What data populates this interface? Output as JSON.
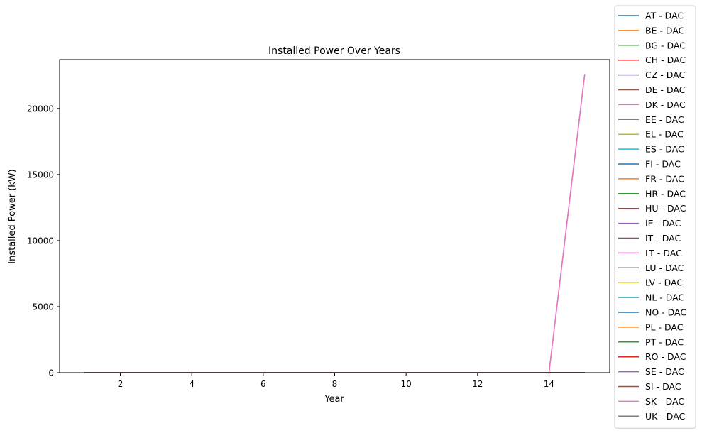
{
  "chart_data": {
    "type": "line",
    "title": "Installed Power Over Years",
    "xlabel": "Year",
    "ylabel": "Installed Power (kW)",
    "xlim": [
      0.3,
      15.7
    ],
    "ylim": [
      0,
      23700
    ],
    "xticks": [
      2,
      4,
      6,
      8,
      10,
      12,
      14
    ],
    "yticks": [
      0,
      5000,
      10000,
      15000,
      20000
    ],
    "grid": false,
    "legend_position": "right, outside plot",
    "x": [
      1,
      2,
      3,
      4,
      5,
      6,
      7,
      8,
      9,
      10,
      11,
      12,
      13,
      14,
      15
    ],
    "series": [
      {
        "name": "AT - DAC",
        "color": "#1f77b4",
        "values": [
          0,
          0,
          0,
          0,
          0,
          0,
          0,
          0,
          0,
          0,
          0,
          0,
          0,
          0,
          0
        ]
      },
      {
        "name": "BE - DAC",
        "color": "#ff7f0e",
        "values": [
          0,
          0,
          0,
          0,
          0,
          0,
          0,
          0,
          0,
          0,
          0,
          0,
          0,
          0,
          0
        ]
      },
      {
        "name": "BG - DAC",
        "color": "#2ca02c",
        "values": [
          0,
          0,
          0,
          0,
          0,
          0,
          0,
          0,
          0,
          0,
          0,
          0,
          0,
          0,
          0
        ]
      },
      {
        "name": "CH - DAC",
        "color": "#d62728",
        "values": [
          0,
          0,
          0,
          0,
          0,
          0,
          0,
          0,
          0,
          0,
          0,
          0,
          0,
          0,
          0
        ]
      },
      {
        "name": "CZ - DAC",
        "color": "#9467bd",
        "values": [
          0,
          0,
          0,
          0,
          0,
          0,
          0,
          0,
          0,
          0,
          0,
          0,
          0,
          0,
          0
        ]
      },
      {
        "name": "DE - DAC",
        "color": "#8c564b",
        "values": [
          0,
          0,
          0,
          0,
          0,
          0,
          0,
          0,
          0,
          0,
          0,
          0,
          0,
          0,
          0
        ]
      },
      {
        "name": "DK - DAC",
        "color": "#e377c2",
        "values": [
          0,
          0,
          0,
          0,
          0,
          0,
          0,
          0,
          0,
          0,
          0,
          0,
          0,
          0,
          22600
        ]
      },
      {
        "name": "EE - DAC",
        "color": "#7f7f7f",
        "values": [
          0,
          0,
          0,
          0,
          0,
          0,
          0,
          0,
          0,
          0,
          0,
          0,
          0,
          0,
          0
        ]
      },
      {
        "name": "EL - DAC",
        "color": "#bcbd22",
        "values": [
          0,
          0,
          0,
          0,
          0,
          0,
          0,
          0,
          0,
          0,
          0,
          0,
          0,
          0,
          0
        ]
      },
      {
        "name": "ES - DAC",
        "color": "#17becf",
        "values": [
          0,
          0,
          0,
          0,
          0,
          0,
          0,
          0,
          0,
          0,
          0,
          0,
          0,
          0,
          0
        ]
      },
      {
        "name": "FI - DAC",
        "color": "#1f77b4",
        "values": [
          0,
          0,
          0,
          0,
          0,
          0,
          0,
          0,
          0,
          0,
          0,
          0,
          0,
          0,
          0
        ]
      },
      {
        "name": "FR - DAC",
        "color": "#ff7f0e",
        "values": [
          0,
          0,
          0,
          0,
          0,
          0,
          0,
          0,
          0,
          0,
          0,
          0,
          0,
          0,
          0
        ]
      },
      {
        "name": "HR - DAC",
        "color": "#2ca02c",
        "values": [
          0,
          0,
          0,
          0,
          0,
          0,
          0,
          0,
          0,
          0,
          0,
          0,
          0,
          0,
          0
        ]
      },
      {
        "name": "HU - DAC",
        "color": "#d62728",
        "values": [
          0,
          0,
          0,
          0,
          0,
          0,
          0,
          0,
          0,
          0,
          0,
          0,
          0,
          0,
          0
        ]
      },
      {
        "name": "IE - DAC",
        "color": "#9467bd",
        "values": [
          0,
          0,
          0,
          0,
          0,
          0,
          0,
          0,
          0,
          0,
          0,
          0,
          0,
          0,
          0
        ]
      },
      {
        "name": "IT - DAC",
        "color": "#8c564b",
        "values": [
          0,
          0,
          0,
          0,
          0,
          0,
          0,
          0,
          0,
          0,
          0,
          0,
          0,
          0,
          0
        ]
      },
      {
        "name": "LT - DAC",
        "color": "#e377c2",
        "values": [
          0,
          0,
          0,
          0,
          0,
          0,
          0,
          0,
          0,
          0,
          0,
          0,
          0,
          0,
          0
        ]
      },
      {
        "name": "LU - DAC",
        "color": "#7f7f7f",
        "values": [
          0,
          0,
          0,
          0,
          0,
          0,
          0,
          0,
          0,
          0,
          0,
          0,
          0,
          0,
          0
        ]
      },
      {
        "name": "LV - DAC",
        "color": "#bcbd22",
        "values": [
          0,
          0,
          0,
          0,
          0,
          0,
          0,
          0,
          0,
          0,
          0,
          0,
          0,
          0,
          0
        ]
      },
      {
        "name": "NL - DAC",
        "color": "#17becf",
        "values": [
          0,
          0,
          0,
          0,
          0,
          0,
          0,
          0,
          0,
          0,
          0,
          0,
          0,
          0,
          0
        ]
      },
      {
        "name": "NO - DAC",
        "color": "#1f77b4",
        "values": [
          0,
          0,
          0,
          0,
          0,
          0,
          0,
          0,
          0,
          0,
          0,
          0,
          0,
          0,
          0
        ]
      },
      {
        "name": "PL - DAC",
        "color": "#ff7f0e",
        "values": [
          0,
          0,
          0,
          0,
          0,
          0,
          0,
          0,
          0,
          0,
          0,
          0,
          0,
          0,
          0
        ]
      },
      {
        "name": "PT - DAC",
        "color": "#2ca02c",
        "values": [
          0,
          0,
          0,
          0,
          0,
          0,
          0,
          0,
          0,
          0,
          0,
          0,
          0,
          0,
          0
        ]
      },
      {
        "name": "RO - DAC",
        "color": "#d62728",
        "values": [
          0,
          0,
          0,
          0,
          0,
          0,
          0,
          0,
          0,
          0,
          0,
          0,
          0,
          0,
          0
        ]
      },
      {
        "name": "SE - DAC",
        "color": "#9467bd",
        "values": [
          0,
          0,
          0,
          0,
          0,
          0,
          0,
          0,
          0,
          0,
          0,
          0,
          0,
          0,
          0
        ]
      },
      {
        "name": "SI - DAC",
        "color": "#8c564b",
        "values": [
          0,
          0,
          0,
          0,
          0,
          0,
          0,
          0,
          0,
          0,
          0,
          0,
          0,
          0,
          0
        ]
      },
      {
        "name": "SK - DAC",
        "color": "#e377c2",
        "values": [
          0,
          0,
          0,
          0,
          0,
          0,
          0,
          0,
          0,
          0,
          0,
          0,
          0,
          0,
          22600
        ]
      },
      {
        "name": "UK - DAC",
        "color": "#7f7f7f",
        "values": [
          0,
          0,
          0,
          0,
          0,
          0,
          0,
          0,
          0,
          0,
          0,
          0,
          0,
          0,
          0
        ]
      }
    ]
  }
}
